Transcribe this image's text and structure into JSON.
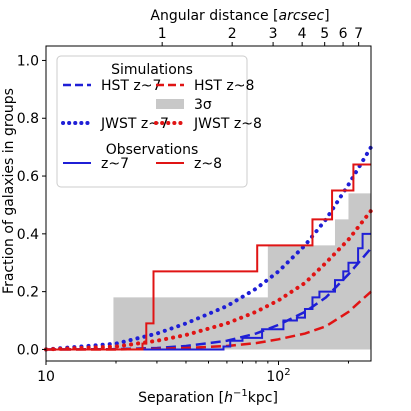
{
  "chart_data": {
    "type": "line",
    "top_axis": {
      "label_main": "Angular distance [",
      "label_italic": "arcsec",
      "label_end": "]",
      "ticks": [
        "1",
        "2",
        "3",
        "4",
        "5",
        "6",
        "7"
      ],
      "tick_values": [
        1,
        2,
        3,
        4,
        5,
        6,
        7
      ]
    },
    "xlabel_main": "Separation [",
    "xlabel_h": "h",
    "xlabel_exp": "−1",
    "xlabel_end": "kpc]",
    "ylabel": "Fraction of galaxies in groups",
    "x_ticks": [
      {
        "value": 10,
        "base": "10",
        "exp": ""
      },
      {
        "value": 100,
        "base": "10",
        "exp": "2"
      }
    ],
    "x_scale": "log",
    "xlim": [
      10,
      250
    ],
    "ylim": [
      -0.04,
      1.05
    ],
    "y_ticks": [
      "0.0",
      "0.2",
      "0.4",
      "0.6",
      "0.8",
      "1.0"
    ],
    "y_tick_values": [
      0.0,
      0.2,
      0.4,
      0.6,
      0.8,
      1.0
    ],
    "arcsec_to_kpc": 31.6,
    "legend": {
      "placement": "top-left",
      "sim_title": "Simulations",
      "obs_title": "Observations",
      "entries": [
        {
          "label": "HST z~7",
          "style": "dashed",
          "color": "#1f1fd6"
        },
        {
          "label": "HST z~8",
          "style": "dashed",
          "color": "#e01414"
        },
        {
          "label": "JWST z~7",
          "style": "dotted",
          "color": "#1f1fd6"
        },
        {
          "label": "3σ",
          "style": "band",
          "color": "#c8c8c8"
        },
        {
          "label": "JWST z~8",
          "style": "dotted",
          "color": "#e01414"
        },
        {
          "label": "z~7",
          "style": "step",
          "color": "#1f1fd6"
        },
        {
          "label": "z~8",
          "style": "step",
          "color": "#e01414"
        }
      ]
    },
    "band": {
      "color": "#c8c8c8",
      "x": [
        10,
        15.5,
        19.5,
        60,
        90,
        145,
        175,
        200,
        250
      ],
      "upper": [
        0,
        0,
        0.18,
        0.18,
        0.36,
        0.36,
        0.45,
        0.54,
        0.64
      ],
      "lower": [
        0,
        0,
        0,
        0,
        0,
        0,
        0,
        0,
        0
      ]
    },
    "series": [
      {
        "name": "HST z~7",
        "style": "dashed",
        "color": "#1f1fd6",
        "x": [
          10,
          20,
          30,
          40,
          60,
          80,
          100,
          130,
          160,
          200,
          250
        ],
        "y": [
          0,
          0.001,
          0.005,
          0.012,
          0.03,
          0.055,
          0.085,
          0.13,
          0.18,
          0.26,
          0.35
        ]
      },
      {
        "name": "HST z~8",
        "style": "dashed",
        "color": "#e01414",
        "x": [
          10,
          20,
          30,
          40,
          60,
          80,
          100,
          130,
          160,
          200,
          250
        ],
        "y": [
          0,
          0,
          0.002,
          0.005,
          0.012,
          0.022,
          0.035,
          0.055,
          0.08,
          0.13,
          0.2
        ]
      },
      {
        "name": "JWST z~7",
        "style": "dotted",
        "color": "#1f1fd6",
        "x": [
          10,
          20,
          30,
          40,
          60,
          80,
          100,
          130,
          160,
          200,
          250
        ],
        "y": [
          0,
          0.02,
          0.055,
          0.09,
          0.15,
          0.21,
          0.27,
          0.36,
          0.45,
          0.57,
          0.7
        ]
      },
      {
        "name": "JWST z~8",
        "style": "dotted",
        "color": "#e01414",
        "x": [
          10,
          20,
          30,
          40,
          60,
          80,
          100,
          130,
          160,
          200,
          250
        ],
        "y": [
          0,
          0.01,
          0.03,
          0.05,
          0.09,
          0.13,
          0.17,
          0.23,
          0.3,
          0.38,
          0.48
        ]
      },
      {
        "name": "z~7",
        "style": "step",
        "color": "#1f1fd6",
        "x": [
          10,
          48,
          58,
          62,
          70,
          85,
          105,
          120,
          130,
          140,
          150,
          175,
          190,
          200,
          220,
          230,
          250
        ],
        "y": [
          0,
          0,
          0.01,
          0.03,
          0.04,
          0.07,
          0.1,
          0.11,
          0.14,
          0.18,
          0.2,
          0.24,
          0.27,
          0.3,
          0.35,
          0.4,
          0.4
        ]
      },
      {
        "name": "z~8",
        "style": "step",
        "color": "#e01414",
        "x": [
          10,
          26,
          27,
          29,
          57,
          81,
          90,
          140,
          170,
          210,
          250
        ],
        "y": [
          0,
          0.02,
          0.09,
          0.27,
          0.27,
          0.36,
          0.36,
          0.45,
          0.55,
          0.64,
          0.64
        ]
      }
    ]
  }
}
